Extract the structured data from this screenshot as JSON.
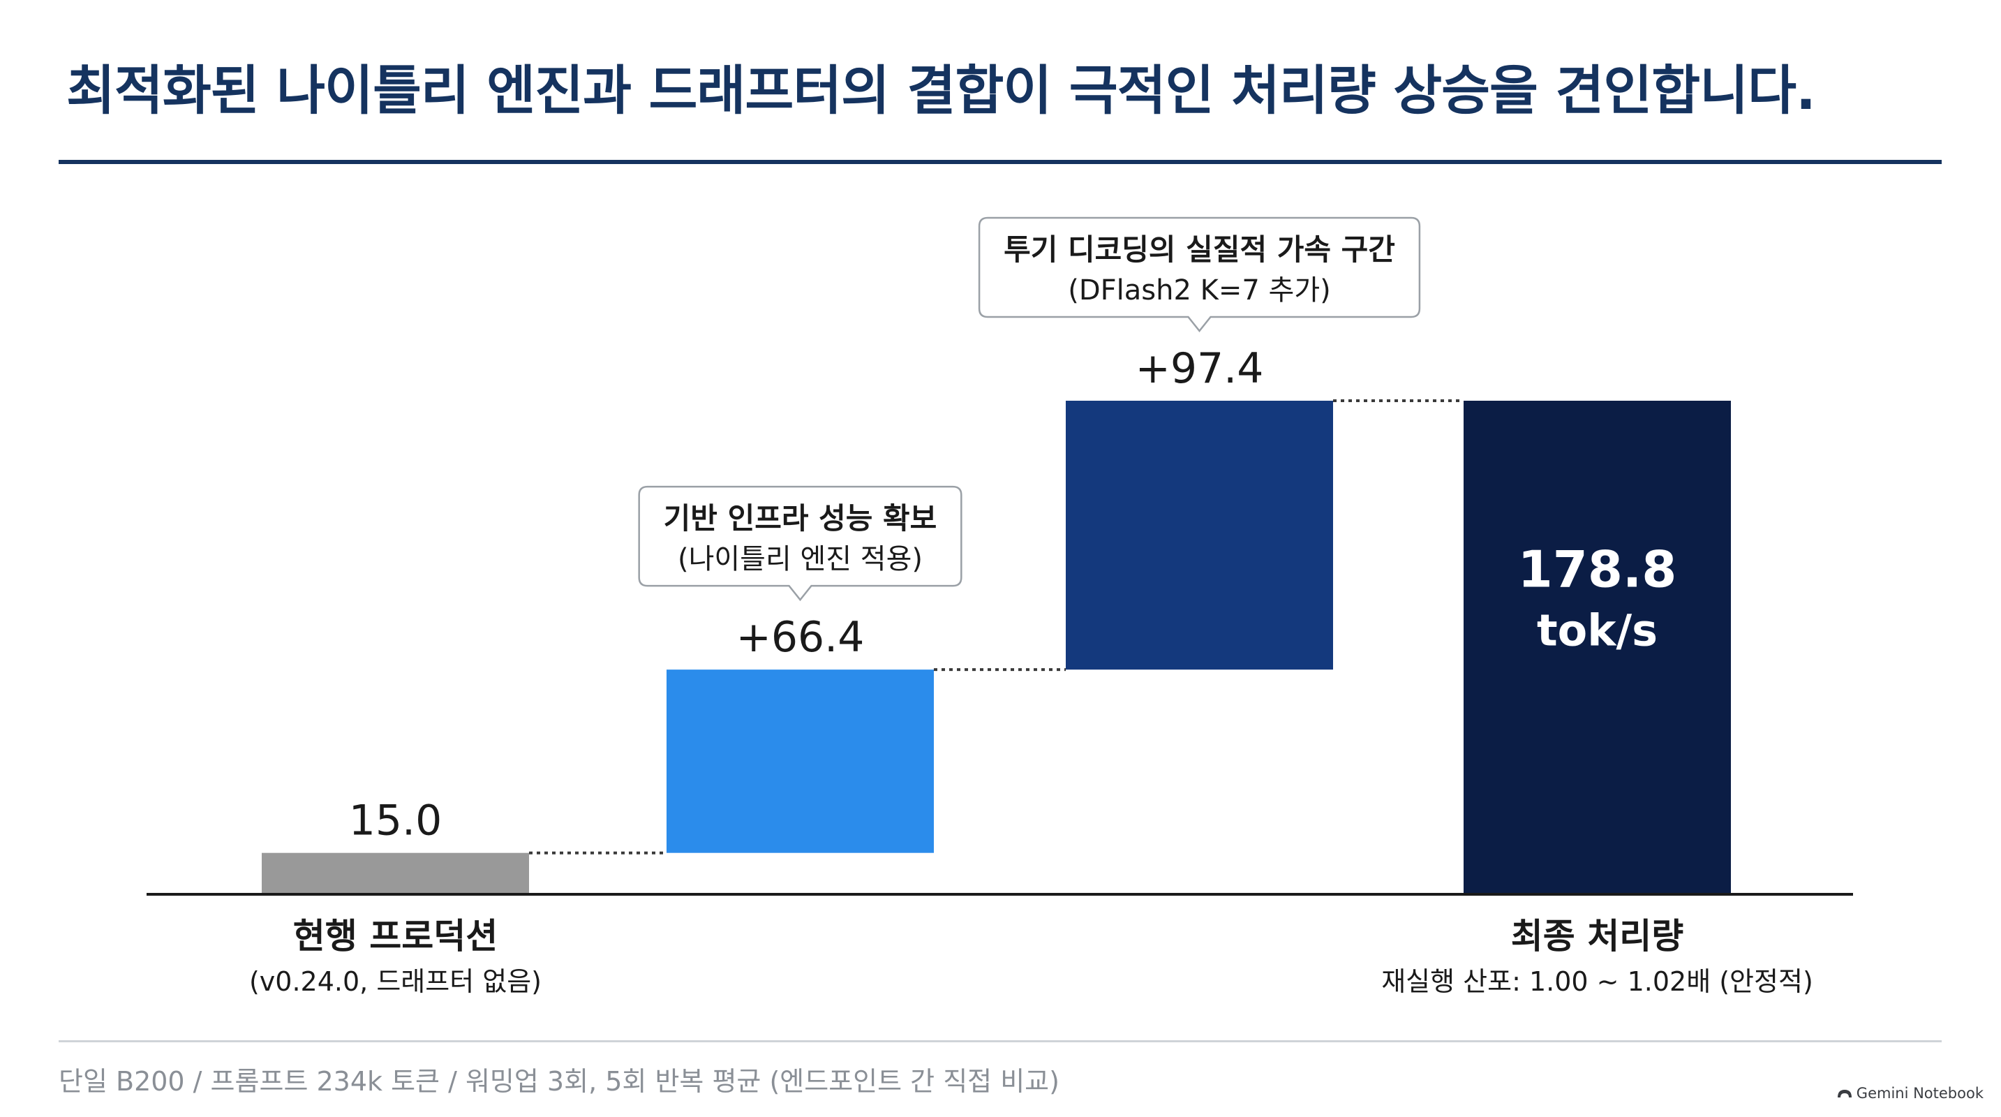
{
  "page": {
    "title": "최적화된 나이틀리 엔진과 드래프터의 결합이 극적인 처리량 상승을 견인합니다.",
    "footnote": "단일 B200 / 프롬프트 234k 토큰 / 워밍업 3회, 5회 반복 평균 (엔드포인트 간 직접 비교)",
    "brand": "Gemini Notebook",
    "brand_icon": "gemini-notebook-icon"
  },
  "chart_data": {
    "type": "bar",
    "subtype": "waterfall",
    "ylim": [
      0,
      178.8
    ],
    "grid": false,
    "legend": "none",
    "colors": {
      "baseline": "#999999",
      "step1": "#2b8ceb",
      "step2": "#14397d",
      "total": "#0b1d45",
      "connector": "#3a3a3a",
      "axis": "#1a1a1a"
    },
    "bars": [
      {
        "kind": "baseline",
        "start": 0,
        "end": 15.0,
        "label": "15.0",
        "color_key": "baseline"
      },
      {
        "kind": "increment",
        "start": 15.0,
        "end": 81.4,
        "label": "+66.4",
        "color_key": "step1"
      },
      {
        "kind": "increment",
        "start": 81.4,
        "end": 178.8,
        "label": "+97.4",
        "color_key": "step2"
      },
      {
        "kind": "total",
        "start": 0,
        "end": 178.8,
        "label": "178.8",
        "unit": "tok/s",
        "color_key": "total"
      }
    ],
    "x_labels": [
      {
        "bar_index": 0,
        "main": "현행 프로덕션",
        "sub": "(v0.24.0, 드래프터 없음)"
      },
      {
        "bar_index": 3,
        "main": "최종 처리량",
        "sub": "재실행 산포: 1.00 ~ 1.02배 (안정적)"
      }
    ],
    "annotations": [
      {
        "bar_index": 1,
        "line1": "기반 인프라 성능 확보",
        "line2": "(나이틀리 엔진 적용)"
      },
      {
        "bar_index": 2,
        "line1": "투기 디코딩의 실질적 가속 구간",
        "line2": "(DFlash2 K=7 추가)"
      }
    ]
  }
}
